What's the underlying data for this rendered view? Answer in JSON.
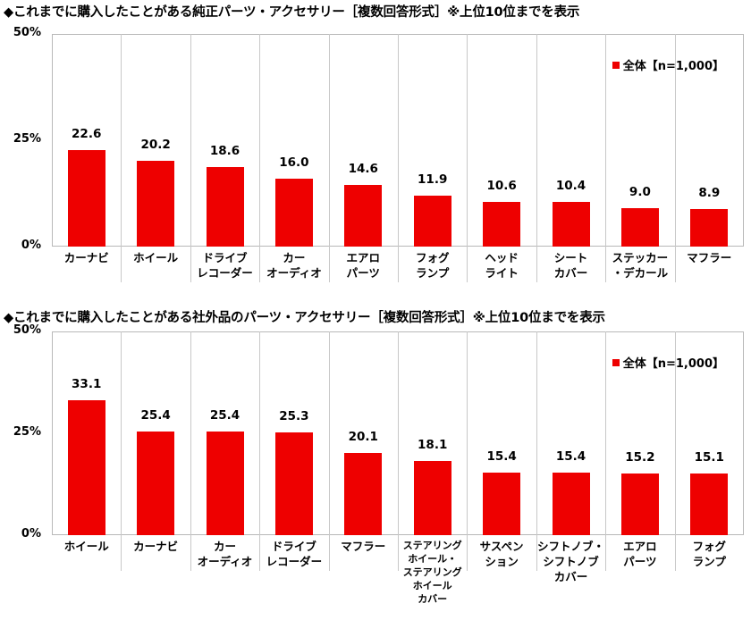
{
  "chart_data": [
    {
      "type": "bar",
      "title": "◆これまでに購入したことがある純正パーツ・アクセサリー［複数回答形式］※上位10位までを表示",
      "categories": [
        "カーナビ",
        "ホイール",
        "ドライブ\nレコーダー",
        "カー\nオーディオ",
        "エアロ\nパーツ",
        "フォグ\nランプ",
        "ヘッド\nライト",
        "シート\nカバー",
        "ステッカー\n・デカール",
        "マフラー"
      ],
      "series": [
        {
          "name": "全体【n=1,000】",
          "values": [
            22.6,
            20.2,
            18.6,
            16.0,
            14.6,
            11.9,
            10.6,
            10.4,
            9.0,
            8.9
          ]
        }
      ],
      "value_labels": [
        "22.6",
        "20.2",
        "18.6",
        "16.0",
        "14.6",
        "11.9",
        "10.6",
        "10.4",
        "9.0",
        "8.9"
      ],
      "yticks": [
        "0%",
        "25%",
        "50%"
      ],
      "ylim": [
        0,
        50
      ],
      "legend_position": "top-right",
      "color": "#ee0000"
    },
    {
      "type": "bar",
      "title": "◆これまでに購入したことがある社外品のパーツ・アクセサリー［複数回答形式］※上位10位までを表示",
      "categories": [
        "ホイール",
        "カーナビ",
        "カー\nオーディオ",
        "ドライブ\nレコーダー",
        "マフラー",
        "ステアリング\nホイール・\nステアリング\nホイール\nカバー",
        "サスペン\nション",
        "シフトノブ・\nシフトノブ\nカバー",
        "エアロ\nパーツ",
        "フォグ\nランプ"
      ],
      "series": [
        {
          "name": "全体【n=1,000】",
          "values": [
            33.1,
            25.4,
            25.4,
            25.3,
            20.1,
            18.1,
            15.4,
            15.4,
            15.2,
            15.1
          ]
        }
      ],
      "value_labels": [
        "33.1",
        "25.4",
        "25.4",
        "25.3",
        "20.1",
        "18.1",
        "15.4",
        "15.4",
        "15.2",
        "15.1"
      ],
      "yticks": [
        "0%",
        "25%",
        "50%"
      ],
      "ylim": [
        0,
        50
      ],
      "legend_position": "top-right",
      "color": "#ee0000"
    }
  ]
}
